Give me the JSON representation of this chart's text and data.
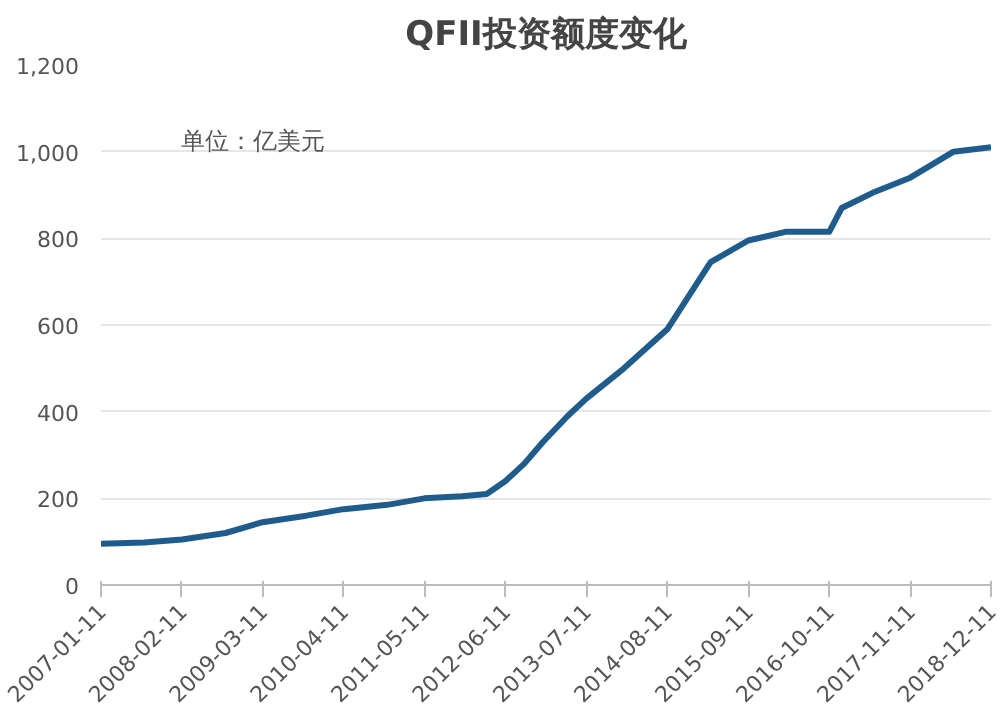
{
  "chart_data": {
    "type": "line",
    "title": "QFII投资额度变化",
    "annotations": [
      "单位：亿美元"
    ],
    "series": [
      {
        "color": "#1f5c8b",
        "x": [
          "2007-01-11",
          "2007-08-11",
          "2008-02-11",
          "2008-09-11",
          "2009-03-11",
          "2009-10-11",
          "2010-04-11",
          "2010-11-11",
          "2011-05-11",
          "2011-11-11",
          "2012-03-11",
          "2012-06-11",
          "2012-09-11",
          "2012-12-11",
          "2013-04-11",
          "2013-07-11",
          "2014-01-11",
          "2014-08-11",
          "2015-03-11",
          "2015-09-11",
          "2016-03-11",
          "2016-10-11",
          "2016-12-11",
          "2017-05-11",
          "2017-11-11",
          "2018-06-11",
          "2018-12-11"
        ],
        "values": [
          95,
          98,
          105,
          120,
          145,
          160,
          175,
          185,
          200,
          205,
          210,
          240,
          280,
          330,
          390,
          430,
          500,
          590,
          745,
          795,
          815,
          815,
          870,
          905,
          940,
          1000,
          1010
        ]
      }
    ],
    "xlim": [
      "2007-01-11",
      "2018-12-11"
    ],
    "xticks": [
      "2007-01-11",
      "2008-02-11",
      "2009-03-11",
      "2010-04-11",
      "2011-05-11",
      "2012-06-11",
      "2013-07-11",
      "2014-08-11",
      "2015-09-11",
      "2016-10-11",
      "2017-11-11",
      "2018-12-11"
    ],
    "ylim": [
      0,
      1200
    ],
    "yticks": [
      {
        "value": 0,
        "label": "0"
      },
      {
        "value": 200,
        "label": "200"
      },
      {
        "value": 400,
        "label": "400"
      },
      {
        "value": 600,
        "label": "600"
      },
      {
        "value": 800,
        "label": "800"
      },
      {
        "value": 1000,
        "label": "1,000"
      },
      {
        "value": 1200,
        "label": "1,200"
      }
    ],
    "grid": "y",
    "line_style": "solid"
  }
}
